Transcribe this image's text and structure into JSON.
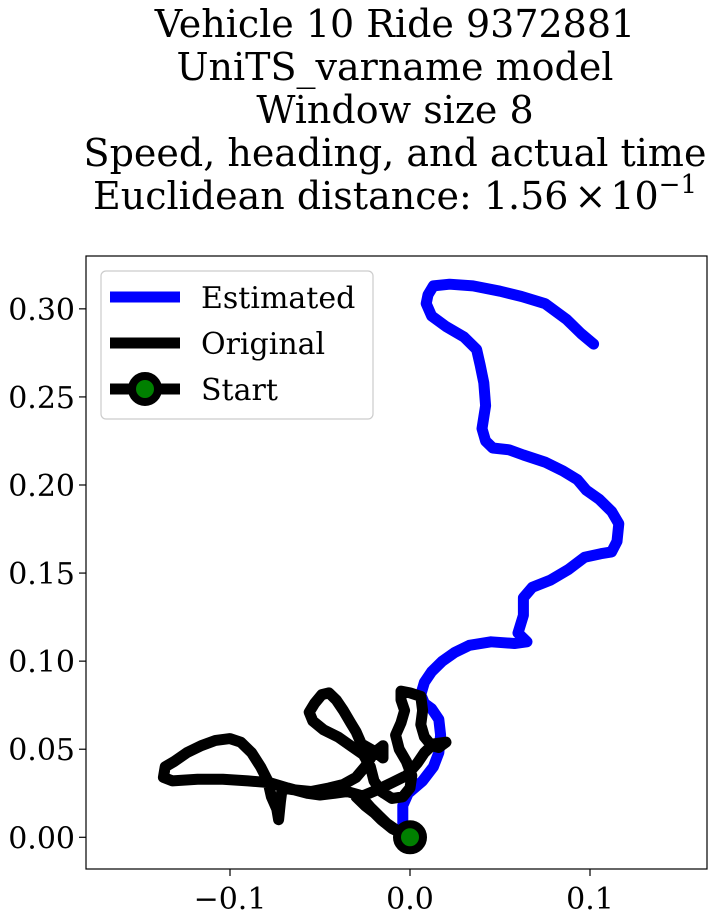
{
  "chart_data": {
    "type": "line",
    "title_lines": [
      "Vehicle 10 Ride 9372881",
      "UniTS_varname model",
      "Window size 8",
      "Speed, heading, and actual time"
    ],
    "title_distance_prefix": "Euclidean distance: ",
    "title_distance_mantissa": "1.56",
    "title_distance_times": "×",
    "title_distance_base": "10",
    "title_distance_exp": "−1",
    "xlim": [
      -0.18,
      0.165
    ],
    "ylim": [
      -0.018,
      0.33
    ],
    "x_ticks": [
      {
        "value": -0.1,
        "label": "−0.1"
      },
      {
        "value": 0.0,
        "label": "0.0"
      },
      {
        "value": 0.1,
        "label": "0.1"
      }
    ],
    "y_ticks": [
      {
        "value": 0.0,
        "label": "0.00"
      },
      {
        "value": 0.05,
        "label": "0.05"
      },
      {
        "value": 0.1,
        "label": "0.10"
      },
      {
        "value": 0.15,
        "label": "0.15"
      },
      {
        "value": 0.2,
        "label": "0.20"
      },
      {
        "value": 0.25,
        "label": "0.25"
      },
      {
        "value": 0.3,
        "label": "0.30"
      }
    ],
    "legend_position": "upper-left",
    "legend": [
      {
        "label": "Estimated",
        "color": "#0000ff",
        "marker": false
      },
      {
        "label": "Original",
        "color": "#000000",
        "marker": false
      },
      {
        "label": "Start",
        "color": "#000000",
        "marker": true,
        "marker_face": "#008000"
      }
    ],
    "series": [
      {
        "name": "Estimated",
        "color": "#0000ff",
        "points": [
          [
            0.0,
            0.0
          ],
          [
            -0.004,
            0.008
          ],
          [
            -0.004,
            0.018
          ],
          [
            -0.001,
            0.025
          ],
          [
            0.007,
            0.032
          ],
          [
            0.013,
            0.04
          ],
          [
            0.016,
            0.048
          ],
          [
            0.017,
            0.058
          ],
          [
            0.016,
            0.067
          ],
          [
            0.012,
            0.073
          ],
          [
            0.008,
            0.076
          ],
          [
            0.006,
            0.081
          ],
          [
            0.008,
            0.088
          ],
          [
            0.012,
            0.094
          ],
          [
            0.018,
            0.1
          ],
          [
            0.025,
            0.105
          ],
          [
            0.033,
            0.109
          ],
          [
            0.045,
            0.111
          ],
          [
            0.058,
            0.11
          ],
          [
            0.065,
            0.111
          ],
          [
            0.06,
            0.116
          ],
          [
            0.063,
            0.126
          ],
          [
            0.063,
            0.136
          ],
          [
            0.068,
            0.142
          ],
          [
            0.078,
            0.146
          ],
          [
            0.088,
            0.152
          ],
          [
            0.097,
            0.159
          ],
          [
            0.106,
            0.161
          ],
          [
            0.112,
            0.162
          ],
          [
            0.115,
            0.168
          ],
          [
            0.116,
            0.178
          ],
          [
            0.112,
            0.185
          ],
          [
            0.105,
            0.192
          ],
          [
            0.098,
            0.197
          ],
          [
            0.093,
            0.203
          ],
          [
            0.085,
            0.208
          ],
          [
            0.075,
            0.213
          ],
          [
            0.063,
            0.217
          ],
          [
            0.055,
            0.22
          ],
          [
            0.046,
            0.221
          ],
          [
            0.042,
            0.225
          ],
          [
            0.04,
            0.232
          ],
          [
            0.042,
            0.245
          ],
          [
            0.041,
            0.258
          ],
          [
            0.039,
            0.268
          ],
          [
            0.037,
            0.277
          ],
          [
            0.03,
            0.284
          ],
          [
            0.02,
            0.29
          ],
          [
            0.012,
            0.296
          ],
          [
            0.009,
            0.303
          ],
          [
            0.01,
            0.308
          ],
          [
            0.013,
            0.313
          ],
          [
            0.022,
            0.314
          ],
          [
            0.035,
            0.313
          ],
          [
            0.05,
            0.31
          ],
          [
            0.062,
            0.307
          ],
          [
            0.075,
            0.303
          ],
          [
            0.087,
            0.294
          ],
          [
            0.095,
            0.286
          ],
          [
            0.102,
            0.28
          ]
        ]
      },
      {
        "name": "Original",
        "color": "#000000",
        "points": [
          [
            0.0,
            0.0
          ],
          [
            -0.006,
            0.003
          ],
          [
            -0.013,
            0.008
          ],
          [
            -0.017,
            0.012
          ],
          [
            -0.022,
            0.017
          ],
          [
            -0.028,
            0.024
          ],
          [
            -0.035,
            0.026
          ],
          [
            -0.042,
            0.025
          ],
          [
            -0.05,
            0.024
          ],
          [
            -0.057,
            0.025
          ],
          [
            -0.068,
            0.028
          ],
          [
            -0.078,
            0.031
          ],
          [
            -0.09,
            0.032
          ],
          [
            -0.104,
            0.033
          ],
          [
            -0.118,
            0.033
          ],
          [
            -0.132,
            0.032
          ],
          [
            -0.137,
            0.034
          ],
          [
            -0.136,
            0.04
          ],
          [
            -0.131,
            0.043
          ],
          [
            -0.124,
            0.048
          ],
          [
            -0.116,
            0.052
          ],
          [
            -0.108,
            0.055
          ],
          [
            -0.1,
            0.056
          ],
          [
            -0.094,
            0.054
          ],
          [
            -0.088,
            0.048
          ],
          [
            -0.083,
            0.04
          ],
          [
            -0.079,
            0.032
          ],
          [
            -0.077,
            0.023
          ],
          [
            -0.074,
            0.016
          ],
          [
            -0.073,
            0.01
          ],
          [
            -0.072,
            0.02
          ],
          [
            -0.071,
            0.028
          ],
          [
            -0.065,
            0.027
          ],
          [
            -0.055,
            0.026
          ],
          [
            -0.045,
            0.028
          ],
          [
            -0.037,
            0.03
          ],
          [
            -0.03,
            0.034
          ],
          [
            -0.025,
            0.04
          ],
          [
            -0.02,
            0.048
          ],
          [
            -0.015,
            0.052
          ],
          [
            -0.015,
            0.045
          ],
          [
            -0.02,
            0.049
          ],
          [
            -0.027,
            0.053
          ],
          [
            -0.03,
            0.06
          ],
          [
            -0.033,
            0.065
          ],
          [
            -0.037,
            0.072
          ],
          [
            -0.041,
            0.078
          ],
          [
            -0.045,
            0.082
          ],
          [
            -0.049,
            0.081
          ],
          [
            -0.053,
            0.076
          ],
          [
            -0.056,
            0.071
          ],
          [
            -0.054,
            0.066
          ],
          [
            -0.048,
            0.061
          ],
          [
            -0.04,
            0.057
          ],
          [
            -0.033,
            0.052
          ],
          [
            -0.026,
            0.047
          ],
          [
            -0.022,
            0.04
          ],
          [
            -0.02,
            0.032
          ],
          [
            -0.016,
            0.026
          ],
          [
            -0.01,
            0.022
          ],
          [
            -0.004,
            0.023
          ],
          [
            0.0,
            0.028
          ],
          [
            0.001,
            0.035
          ],
          [
            -0.002,
            0.043
          ],
          [
            -0.006,
            0.05
          ],
          [
            -0.008,
            0.058
          ],
          [
            -0.005,
            0.065
          ],
          [
            -0.003,
            0.072
          ],
          [
            -0.005,
            0.078
          ],
          [
            -0.005,
            0.083
          ],
          [
            0.0,
            0.082
          ],
          [
            0.006,
            0.08
          ],
          [
            0.007,
            0.072
          ],
          [
            0.006,
            0.064
          ],
          [
            0.008,
            0.057
          ],
          [
            0.012,
            0.052
          ],
          [
            0.016,
            0.051
          ],
          [
            0.02,
            0.054
          ],
          [
            0.013,
            0.053
          ],
          [
            0.008,
            0.048
          ],
          [
            0.004,
            0.042
          ],
          [
            -0.002,
            0.035
          ],
          [
            -0.01,
            0.031
          ],
          [
            -0.018,
            0.027
          ],
          [
            -0.025,
            0.024
          ],
          [
            -0.03,
            0.023
          ],
          [
            -0.025,
            0.018
          ],
          [
            -0.02,
            0.014
          ],
          [
            -0.016,
            0.01
          ],
          [
            -0.01,
            0.005
          ],
          [
            -0.004,
            0.002
          ],
          [
            0.0,
            0.0
          ]
        ]
      }
    ],
    "start_point": [
      0.0,
      0.0
    ]
  }
}
